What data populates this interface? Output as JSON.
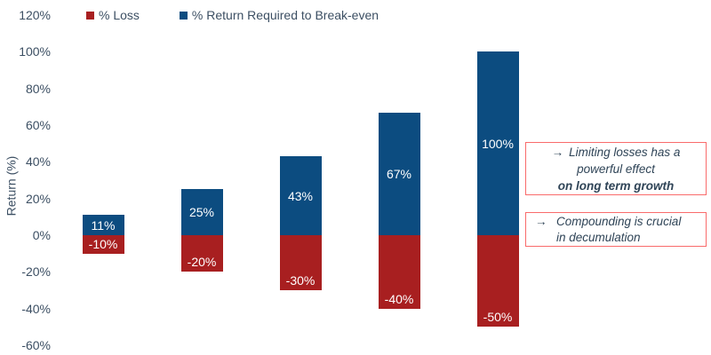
{
  "chart_data": {
    "type": "bar",
    "stacked": true,
    "ylabel": "Return (%)",
    "ylim": [
      -60,
      120
    ],
    "ytick_labels": [
      "120%",
      "100%",
      "80%",
      "60%",
      "40%",
      "20%",
      "0%",
      "-20%",
      "-40%",
      "-60%"
    ],
    "grid": false,
    "legend_position": "top",
    "series": [
      {
        "name": "% Loss",
        "color": "#A81F20",
        "values": [
          -10,
          -20,
          -30,
          -40,
          -50
        ],
        "labels": [
          "-10%",
          "-20%",
          "-30%",
          "-40%",
          "-50%"
        ]
      },
      {
        "name": "% Return Required to Break-even",
        "color": "#0C4C80",
        "values": [
          11,
          25,
          43,
          67,
          100
        ],
        "labels": [
          "11%",
          "25%",
          "43%",
          "67%",
          "100%"
        ]
      }
    ]
  },
  "annotations": {
    "box1": {
      "arrow": "→",
      "line1": "Limiting losses has a",
      "line2": "powerful effect",
      "line3_bold": "on long term growth"
    },
    "box2": {
      "arrow": "→",
      "line1": "Compounding is crucial",
      "line2": "in decumulation"
    }
  },
  "colors": {
    "loss": "#A81F20",
    "gain": "#0C4C80",
    "axis_text": "#3C4F63",
    "annotation_text": "#2F4457",
    "annotation_border": "#F96B6B",
    "bar_label_text": "#FFFFFF",
    "background": "#FFFFFF"
  }
}
